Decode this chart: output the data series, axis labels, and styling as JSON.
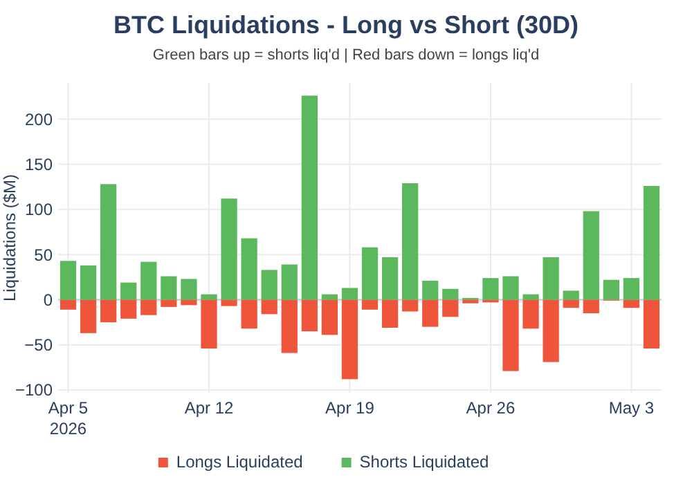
{
  "chart_data": {
    "type": "bar",
    "title": "BTC Liquidations - Long vs Short (30D)",
    "subtitle": "Green bars up = shorts liq'd | Red bars down = longs liq'd",
    "ylabel": "Liquidations ($M)",
    "x": [
      "2026-04-05",
      "2026-04-06",
      "2026-04-07",
      "2026-04-08",
      "2026-04-09",
      "2026-04-10",
      "2026-04-11",
      "2026-04-12",
      "2026-04-13",
      "2026-04-14",
      "2026-04-15",
      "2026-04-16",
      "2026-04-17",
      "2026-04-18",
      "2026-04-19",
      "2026-04-20",
      "2026-04-21",
      "2026-04-22",
      "2026-04-23",
      "2026-04-24",
      "2026-04-25",
      "2026-04-26",
      "2026-04-27",
      "2026-04-28",
      "2026-04-29",
      "2026-04-30",
      "2026-05-01",
      "2026-05-02",
      "2026-05-03",
      "2026-05-04"
    ],
    "series": [
      {
        "name": "Longs Liquidated",
        "color": "#ef553b",
        "values": [
          -11,
          -37,
          -25,
          -21,
          -17,
          -8,
          -6,
          -54,
          -7,
          -32,
          -16,
          -59,
          -35,
          -39,
          -88,
          -11,
          -31,
          -13,
          -30,
          -19,
          -4,
          -3,
          -79,
          -32,
          -69,
          -9,
          -15,
          -1,
          -9,
          -54
        ]
      },
      {
        "name": "Shorts Liquidated",
        "color": "#5cb85c",
        "values": [
          43,
          38,
          128,
          19,
          42,
          26,
          23,
          6,
          112,
          68,
          33,
          39,
          226,
          6,
          13,
          58,
          47,
          129,
          21,
          12,
          2,
          24,
          26,
          6,
          47,
          10,
          98,
          22,
          24,
          126
        ]
      }
    ],
    "xlim": [
      "2026-04-04T12:00",
      "2026-05-04T12:00"
    ],
    "xticks": [
      {
        "value": "2026-04-05",
        "label": "Apr 5\n2026"
      },
      {
        "value": "2026-04-12",
        "label": "Apr 12"
      },
      {
        "value": "2026-04-19",
        "label": "Apr 19"
      },
      {
        "value": "2026-04-26",
        "label": "Apr 26"
      },
      {
        "value": "2026-05-03",
        "label": "May 3"
      }
    ],
    "ylim": [
      -103,
      240
    ],
    "yticks": [
      {
        "value": -100,
        "label": "−100"
      },
      {
        "value": -50,
        "label": "−50"
      },
      0,
      50,
      100,
      150,
      200
    ],
    "stacked": true,
    "grid": true,
    "legend": "bottom"
  }
}
